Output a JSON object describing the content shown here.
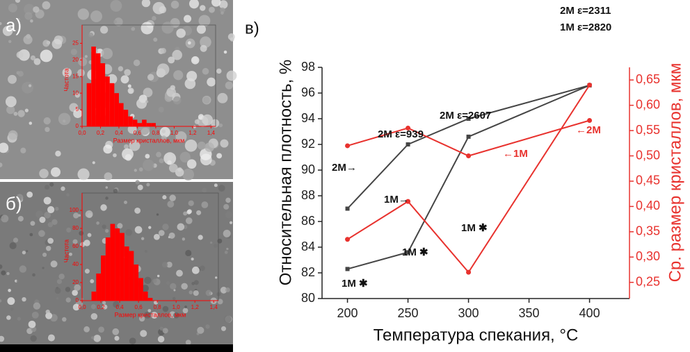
{
  "chart_data": [
    {
      "type": "histogram",
      "label": "а)",
      "color": "#ff0000",
      "xlabel": "Размер кристаллов, мкм",
      "ylabel": "Частота",
      "bins": [
        0.05,
        0.1,
        0.15,
        0.2,
        0.25,
        0.3,
        0.35,
        0.4,
        0.45,
        0.5,
        0.55,
        0.6,
        0.65,
        0.7,
        0.75,
        0.8
      ],
      "values": [
        13,
        24,
        22,
        19,
        15,
        13,
        10,
        7,
        5,
        3,
        2,
        1,
        2,
        1,
        1
      ],
      "xlim": [
        0,
        1.45
      ],
      "ylim": [
        0,
        28
      ],
      "xticks": [
        {
          "value": 0,
          "label": "0,0"
        },
        {
          "value": 0.2,
          "label": "0,2"
        },
        {
          "value": 0.4,
          "label": "0,4"
        },
        {
          "value": 0.6,
          "label": "0,6"
        },
        {
          "value": 0.8,
          "label": "0,8"
        },
        {
          "value": 1.0,
          "label": "1,0"
        },
        {
          "value": 1.2,
          "label": "1,2"
        },
        {
          "value": 1.4,
          "label": "1,4"
        }
      ],
      "yticks": [
        0,
        5,
        10,
        15,
        20,
        25
      ]
    },
    {
      "type": "histogram",
      "label": "б)",
      "color": "#ff0000",
      "xlabel": "Размер кристаллов, мкм",
      "ylabel": "Частота",
      "bins": [
        0.1,
        0.15,
        0.2,
        0.25,
        0.3,
        0.35,
        0.4,
        0.45,
        0.5,
        0.55,
        0.6,
        0.65,
        0.7,
        0.75
      ],
      "values": [
        10,
        30,
        50,
        70,
        85,
        80,
        75,
        60,
        55,
        40,
        25,
        10,
        3
      ],
      "xlim": [
        0,
        1.45
      ],
      "ylim": [
        0,
        110
      ],
      "xticks": [
        {
          "value": 0,
          "label": "0,0"
        },
        {
          "value": 0.2,
          "label": "0,2"
        },
        {
          "value": 0.4,
          "label": "0,4"
        },
        {
          "value": 0.6,
          "label": "0,6"
        },
        {
          "value": 0.8,
          "label": "0,8"
        },
        {
          "value": 1.0,
          "label": "1,0"
        },
        {
          "value": 1.2,
          "label": "1,2"
        },
        {
          "value": 1.4,
          "label": "1,4"
        }
      ],
      "yticks": [
        0,
        20,
        40,
        60,
        80,
        100
      ]
    },
    {
      "type": "line",
      "label": "в)",
      "xlabel": "Температура спекания, °C",
      "ylabel": "Относительная плотность, %",
      "y2label": "Ср. размер кристаллов, мкм",
      "y2color": "#e8322e",
      "x": [
        200,
        250,
        300,
        400
      ],
      "xlim": [
        179,
        433
      ],
      "xticks": [
        200,
        250,
        300,
        350,
        400
      ],
      "ylim": [
        80,
        98
      ],
      "yticks": [
        80,
        82,
        84,
        86,
        88,
        90,
        92,
        94,
        96,
        98
      ],
      "y2lim": [
        0.218,
        0.675
      ],
      "y2ticks": [
        {
          "value": 0.25,
          "label": "0,25"
        },
        {
          "value": 0.3,
          "label": "0,30"
        },
        {
          "value": 0.35,
          "label": "0,35"
        },
        {
          "value": 0.4,
          "label": "0,40"
        },
        {
          "value": 0.45,
          "label": "0,45"
        },
        {
          "value": 0.5,
          "label": "0,50"
        },
        {
          "value": 0.55,
          "label": "0,55"
        },
        {
          "value": 0.6,
          "label": "0,60"
        },
        {
          "value": 0.65,
          "label": "0,65"
        }
      ],
      "series": [
        {
          "color": "#454545",
          "values": [
            87.0,
            92.0,
            94.0,
            96.6
          ]
        },
        {
          "color": "#454545",
          "values": [
            82.3,
            83.6,
            92.6,
            96.6
          ]
        },
        {
          "color": "#e8322e",
          "axis": "y2",
          "values": [
            0.52,
            0.555,
            0.5,
            0.57
          ]
        },
        {
          "color": "#e8322e",
          "axis": "y2",
          "values": [
            0.335,
            0.41,
            0.27,
            0.64
          ]
        }
      ],
      "annotations": [
        "2M ε=2311",
        "1M ε=2820",
        "2M ε=2607",
        "2M ε=939",
        "2M→",
        "1M→",
        "1M ✱",
        "1M ✱",
        "1M ✱",
        "←1M",
        "←2M"
      ]
    }
  ]
}
